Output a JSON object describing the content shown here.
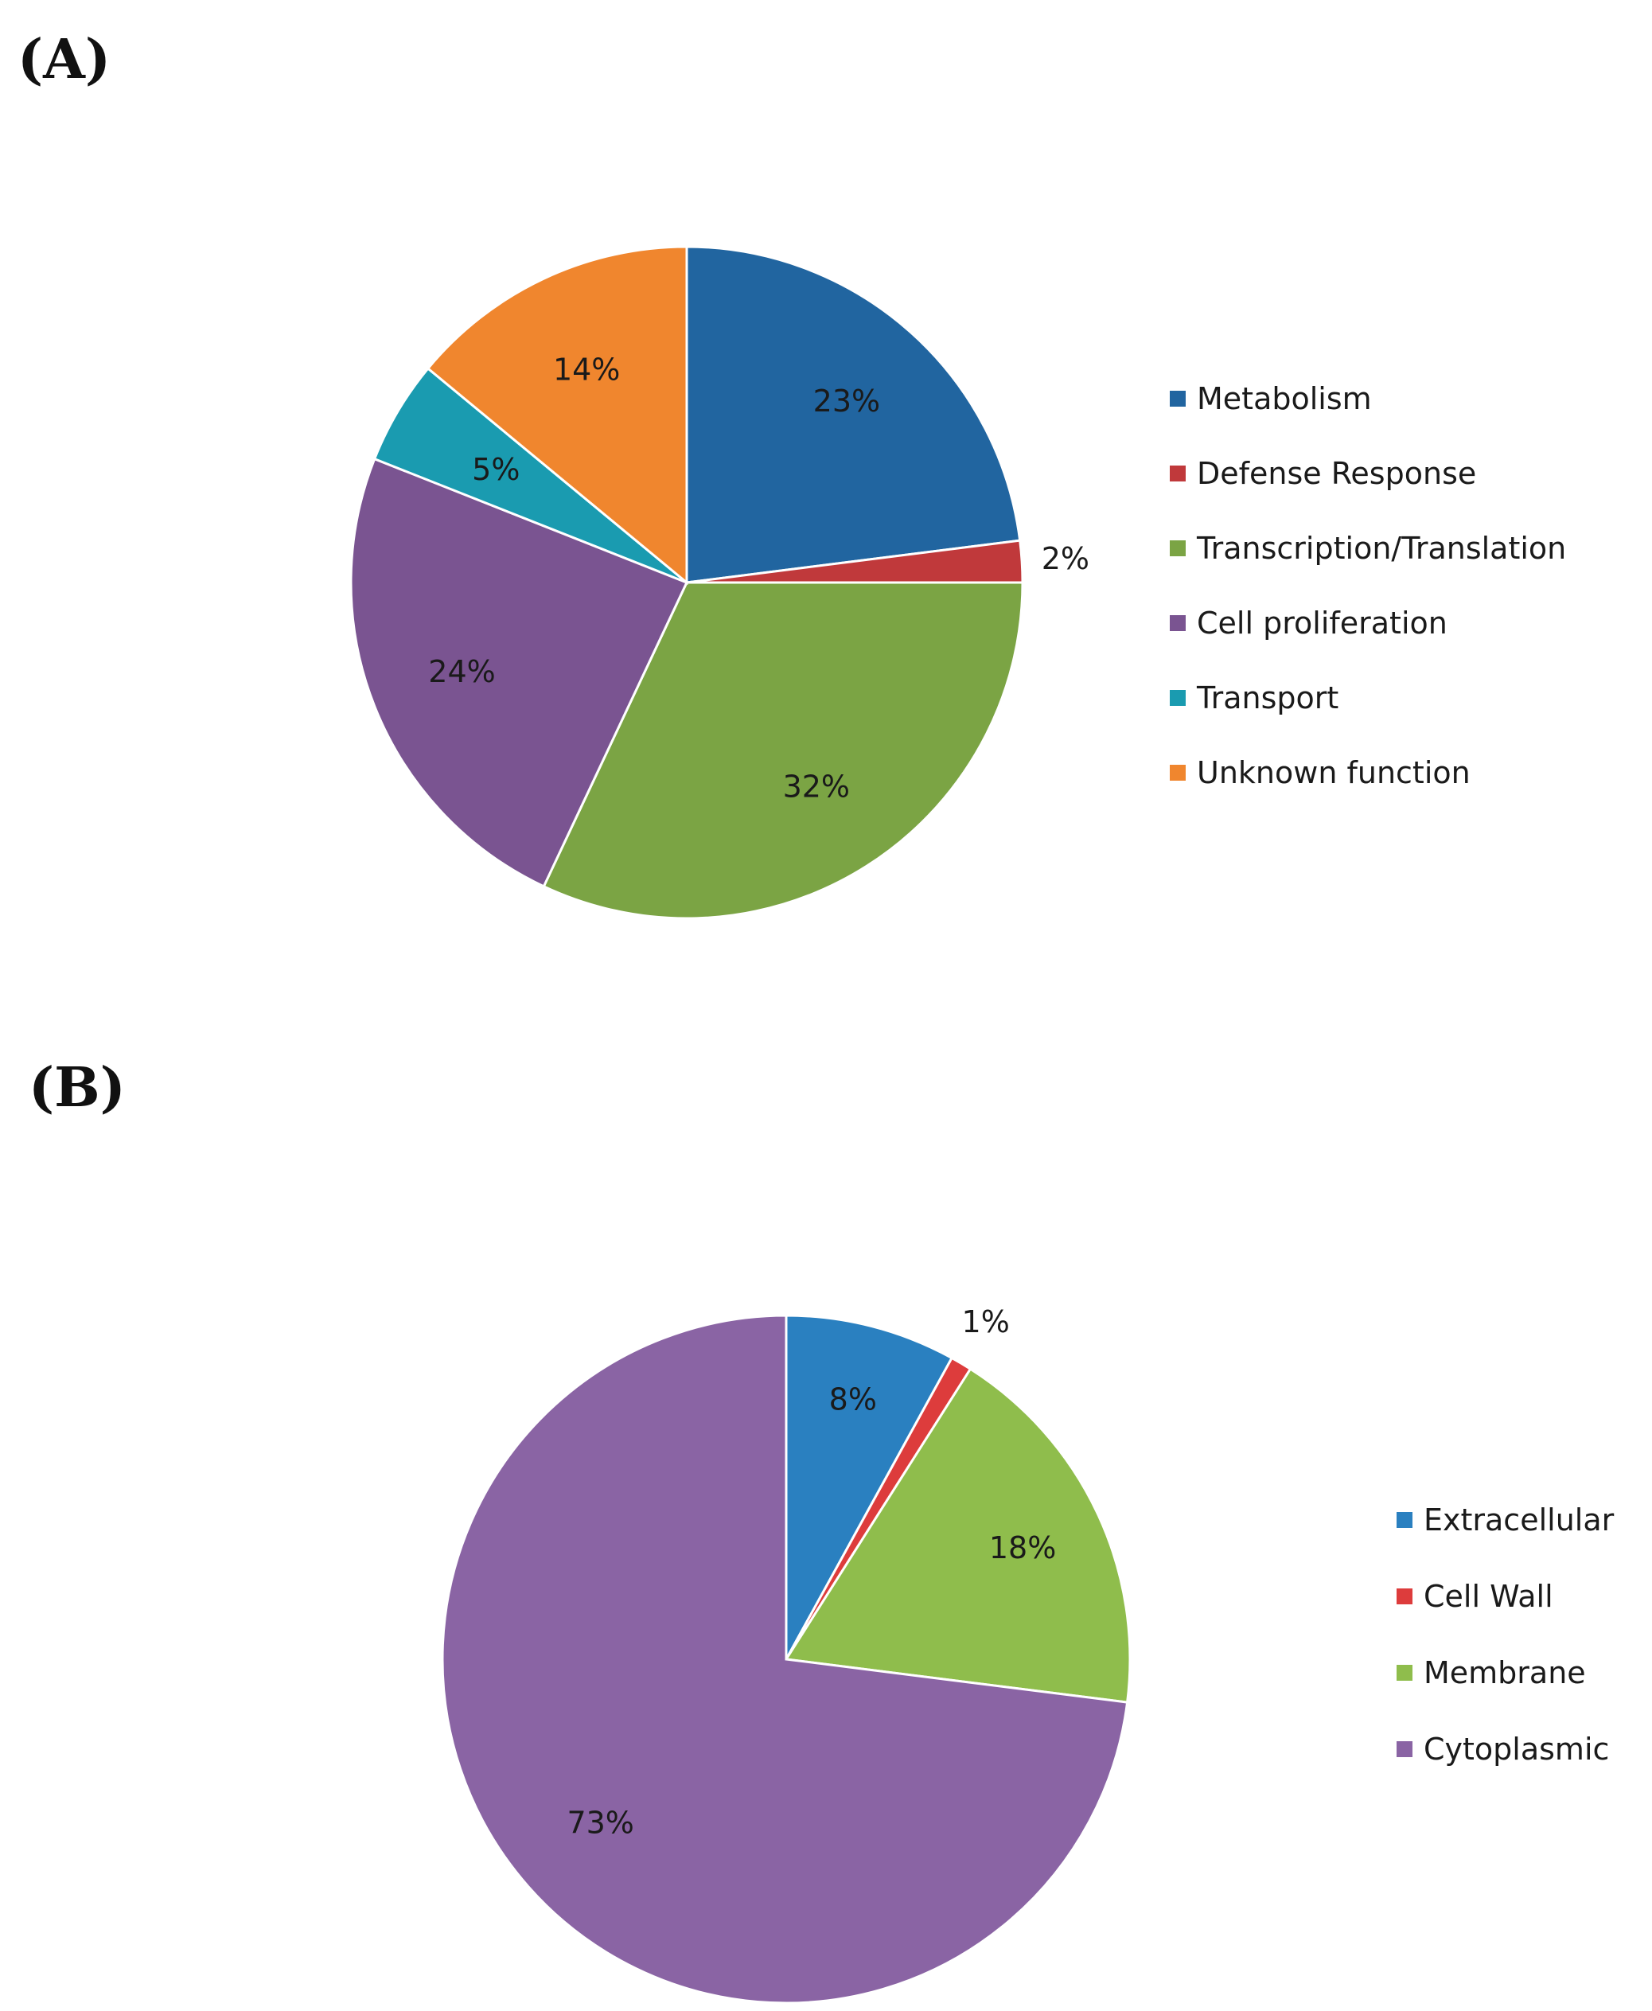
{
  "chart_data": [
    {
      "type": "pie",
      "panel_label": "(A)",
      "title": "",
      "legend_position": "right",
      "slices": [
        {
          "name": "Metabolism",
          "value": 23,
          "label": "23%",
          "color": "#2165a0"
        },
        {
          "name": "Defense Response",
          "value": 2,
          "label": "2%",
          "color": "#c0393b"
        },
        {
          "name": "Transcription/Translation",
          "value": 32,
          "label": "32%",
          "color": "#7ba444"
        },
        {
          "name": "Cell proliferation",
          "value": 24,
          "label": "24%",
          "color": "#7a5491"
        },
        {
          "name": "Transport",
          "value": 5,
          "label": "5%",
          "color": "#1a9bb0"
        },
        {
          "name": "Unknown function",
          "value": 14,
          "label": "14%",
          "color": "#f0862e"
        }
      ]
    },
    {
      "type": "pie",
      "panel_label": "(B)",
      "title": "",
      "legend_position": "right",
      "slices": [
        {
          "name": "Extracellular",
          "value": 8,
          "label": "8%",
          "color": "#2a80c0"
        },
        {
          "name": "Cell Wall",
          "value": 1,
          "label": "1%",
          "color": "#dd3c3c"
        },
        {
          "name": "Membrane",
          "value": 18,
          "label": "18%",
          "color": "#8fbd4c"
        },
        {
          "name": "Cytoplasmic",
          "value": 73,
          "label": "73%",
          "color": "#8a64a4"
        }
      ]
    }
  ]
}
